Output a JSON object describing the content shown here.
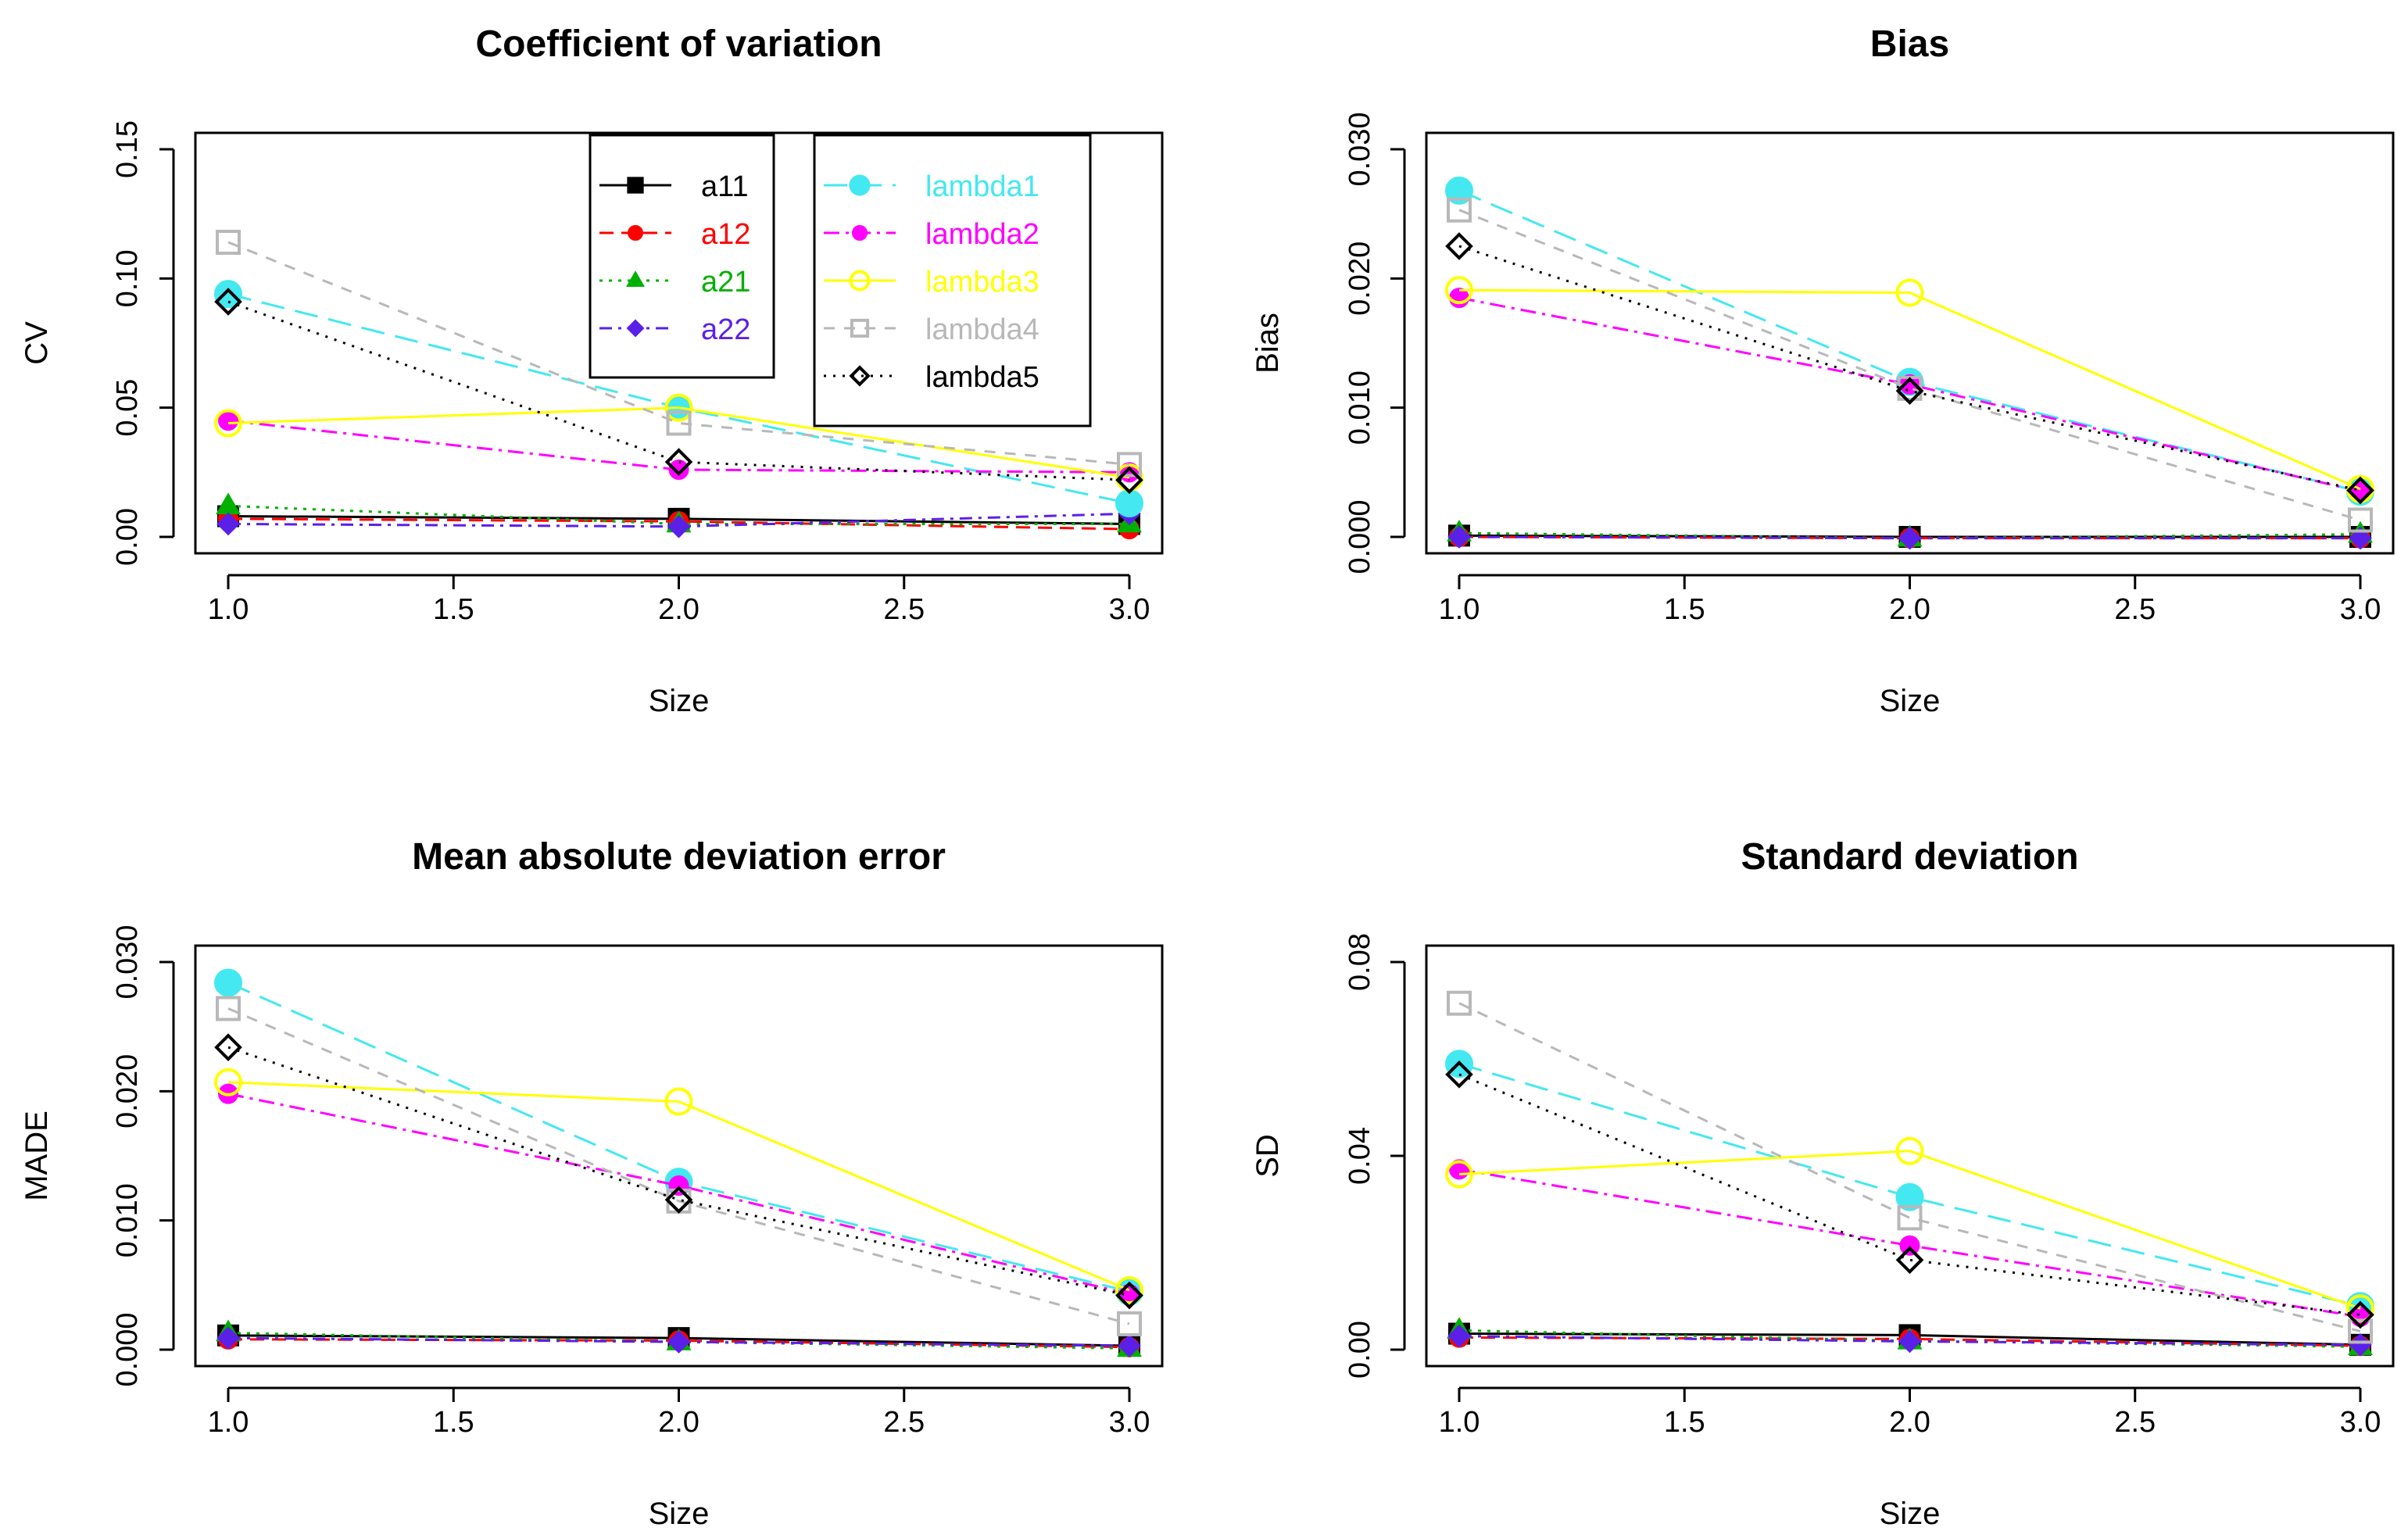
{
  "colors": {
    "a11": "#000000",
    "a12": "#ff0000",
    "a21": "#00b000",
    "a22": "#5a20e8",
    "lambda1": "#44e8f0",
    "lambda2": "#ff00ff",
    "lambda3": "#ffff00",
    "lambda4": "#b8b8b8",
    "lambda5": "#000000",
    "axis": "#000000",
    "background": "#ffffff"
  },
  "legend": {
    "position": "top-center of first panel",
    "col1": [
      "a11",
      "a12",
      "a21",
      "a22"
    ],
    "col2": [
      "lambda1",
      "lambda2",
      "lambda3",
      "lambda4",
      "lambda5"
    ]
  },
  "chart_data": [
    {
      "id": "cv",
      "type": "line",
      "title": "Coefficient of variation",
      "xlabel": "Size",
      "ylabel": "CV",
      "x": [
        1,
        2,
        3
      ],
      "xlim": [
        1,
        3
      ],
      "ylim": [
        0,
        0.15
      ],
      "xticks": [
        1.0,
        1.5,
        2.0,
        2.5,
        3.0
      ],
      "xtick_labels": [
        "1.0",
        "1.5",
        "2.0",
        "2.5",
        "3.0"
      ],
      "yticks": [
        0,
        0.05,
        0.1,
        0.15
      ],
      "ytick_labels": [
        "0.00",
        "0.05",
        "0.10",
        "0.15"
      ],
      "series": [
        {
          "name": "a11",
          "values": [
            0.008,
            0.007,
            0.005
          ]
        },
        {
          "name": "a12",
          "values": [
            0.007,
            0.006,
            0.003
          ]
        },
        {
          "name": "a21",
          "values": [
            0.012,
            0.005,
            0.005
          ]
        },
        {
          "name": "a22",
          "values": [
            0.005,
            0.004,
            0.009
          ]
        },
        {
          "name": "lambda1",
          "values": [
            0.094,
            0.05,
            0.013
          ]
        },
        {
          "name": "lambda2",
          "values": [
            0.045,
            0.026,
            0.025
          ]
        },
        {
          "name": "lambda3",
          "values": [
            0.044,
            0.05,
            0.023
          ]
        },
        {
          "name": "lambda4",
          "values": [
            0.114,
            0.044,
            0.028
          ]
        },
        {
          "name": "lambda5",
          "values": [
            0.091,
            0.029,
            0.022
          ]
        }
      ]
    },
    {
      "id": "bias",
      "type": "line",
      "title": "Bias",
      "xlabel": "Size",
      "ylabel": "Bias",
      "x": [
        1,
        2,
        3
      ],
      "xlim": [
        1,
        3
      ],
      "ylim": [
        0,
        0.03
      ],
      "xticks": [
        1.0,
        1.5,
        2.0,
        2.5,
        3.0
      ],
      "xtick_labels": [
        "1.0",
        "1.5",
        "2.0",
        "2.5",
        "3.0"
      ],
      "yticks": [
        0,
        0.01,
        0.02,
        0.03
      ],
      "ytick_labels": [
        "0.000",
        "0.010",
        "0.020",
        "0.030"
      ],
      "series": [
        {
          "name": "a11",
          "values": [
            0.0001,
            0.0,
            0.0
          ]
        },
        {
          "name": "a12",
          "values": [
            0.0,
            -0.0001,
            -0.0001
          ]
        },
        {
          "name": "a21",
          "values": [
            0.0003,
            -0.0001,
            0.0002
          ]
        },
        {
          "name": "a22",
          "values": [
            0.0,
            -0.0001,
            -0.0001
          ]
        },
        {
          "name": "lambda1",
          "values": [
            0.0268,
            0.012,
            0.0035
          ]
        },
        {
          "name": "lambda2",
          "values": [
            0.0185,
            0.0118,
            0.0035
          ]
        },
        {
          "name": "lambda3",
          "values": [
            0.0191,
            0.0189,
            0.0037
          ]
        },
        {
          "name": "lambda4",
          "values": [
            0.0253,
            0.0115,
            0.0013
          ]
        },
        {
          "name": "lambda5",
          "values": [
            0.0225,
            0.0113,
            0.0036
          ]
        }
      ]
    },
    {
      "id": "made",
      "type": "line",
      "title": "Mean absolute deviation error",
      "xlabel": "Size",
      "ylabel": "MADE",
      "x": [
        1,
        2,
        3
      ],
      "xlim": [
        1,
        3
      ],
      "ylim": [
        0,
        0.03
      ],
      "xticks": [
        1.0,
        1.5,
        2.0,
        2.5,
        3.0
      ],
      "xtick_labels": [
        "1.0",
        "1.5",
        "2.0",
        "2.5",
        "3.0"
      ],
      "yticks": [
        0,
        0.01,
        0.02,
        0.03
      ],
      "ytick_labels": [
        "0.000",
        "0.010",
        "0.020",
        "0.030"
      ],
      "series": [
        {
          "name": "a11",
          "values": [
            0.0011,
            0.0009,
            0.0003
          ]
        },
        {
          "name": "a12",
          "values": [
            0.0008,
            0.0007,
            0.0002
          ]
        },
        {
          "name": "a21",
          "values": [
            0.0013,
            0.0006,
            0.0001
          ]
        },
        {
          "name": "a22",
          "values": [
            0.0009,
            0.0006,
            0.0003
          ]
        },
        {
          "name": "lambda1",
          "values": [
            0.0284,
            0.013,
            0.0045
          ]
        },
        {
          "name": "lambda2",
          "values": [
            0.0198,
            0.0127,
            0.0043
          ]
        },
        {
          "name": "lambda3",
          "values": [
            0.0207,
            0.0192,
            0.0046
          ]
        },
        {
          "name": "lambda4",
          "values": [
            0.0264,
            0.0115,
            0.002
          ]
        },
        {
          "name": "lambda5",
          "values": [
            0.0234,
            0.0116,
            0.0042
          ]
        }
      ]
    },
    {
      "id": "sd",
      "type": "line",
      "title": "Standard deviation",
      "xlabel": "Size",
      "ylabel": "SD",
      "x": [
        1,
        2,
        3
      ],
      "xlim": [
        1,
        3
      ],
      "ylim": [
        0,
        0.08
      ],
      "xticks": [
        1.0,
        1.5,
        2.0,
        2.5,
        3.0
      ],
      "xtick_labels": [
        "1.0",
        "1.5",
        "2.0",
        "2.5",
        "3.0"
      ],
      "yticks": [
        0,
        0.04,
        0.08
      ],
      "ytick_labels": [
        "0.00",
        "0.04",
        "0.08"
      ],
      "series": [
        {
          "name": "a11",
          "values": [
            0.0033,
            0.003,
            0.001
          ]
        },
        {
          "name": "a12",
          "values": [
            0.0025,
            0.0022,
            0.0008
          ]
        },
        {
          "name": "a21",
          "values": [
            0.004,
            0.0018,
            0.0006
          ]
        },
        {
          "name": "a22",
          "values": [
            0.0028,
            0.0017,
            0.001
          ]
        },
        {
          "name": "lambda1",
          "values": [
            0.059,
            0.0315,
            0.009
          ]
        },
        {
          "name": "lambda2",
          "values": [
            0.0372,
            0.0215,
            0.0068
          ]
        },
        {
          "name": "lambda3",
          "values": [
            0.0362,
            0.041,
            0.0085
          ]
        },
        {
          "name": "lambda4",
          "values": [
            0.0715,
            0.0272,
            0.0038
          ]
        },
        {
          "name": "lambda5",
          "values": [
            0.0568,
            0.0185,
            0.0072
          ]
        }
      ]
    }
  ]
}
